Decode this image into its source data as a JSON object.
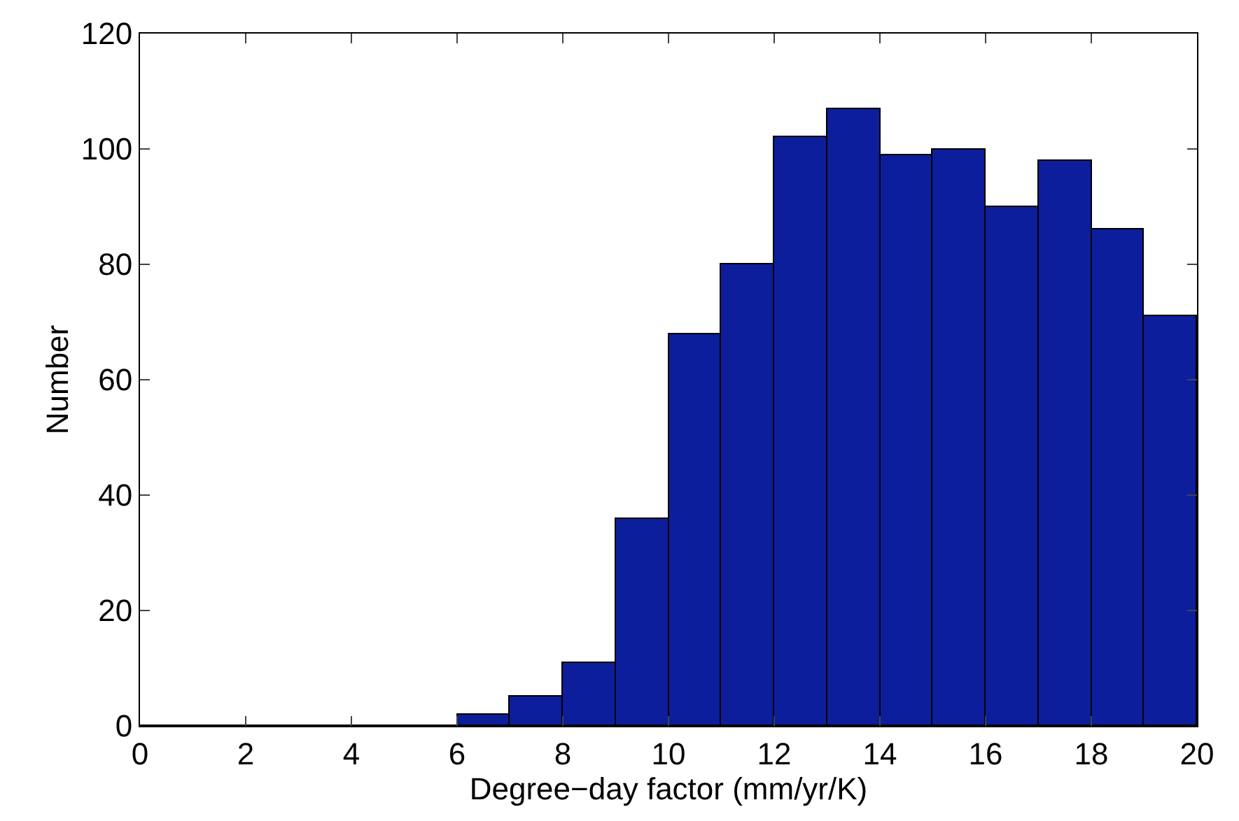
{
  "chart_data": {
    "type": "histogram",
    "xlabel": "Degree−day factor (mm/yr/K)",
    "ylabel": "Number",
    "bins": [
      0,
      1,
      2,
      3,
      4,
      5,
      6,
      7,
      8,
      9,
      10,
      11,
      12,
      13,
      14,
      15,
      16,
      17,
      18,
      19,
      20
    ],
    "values": [
      0,
      0,
      0,
      0,
      0,
      0,
      2,
      5,
      11,
      36,
      68,
      80,
      102,
      107,
      99,
      100,
      90,
      98,
      86,
      71
    ],
    "color": "#0c1e9b",
    "xlim": [
      0,
      20
    ],
    "xticks": [
      0,
      2,
      4,
      6,
      8,
      10,
      12,
      14,
      16,
      18,
      20
    ],
    "ylim": [
      0,
      120
    ],
    "yticks": [
      0,
      20,
      40,
      60,
      80,
      100,
      120
    ],
    "grid": false,
    "legend": false
  }
}
